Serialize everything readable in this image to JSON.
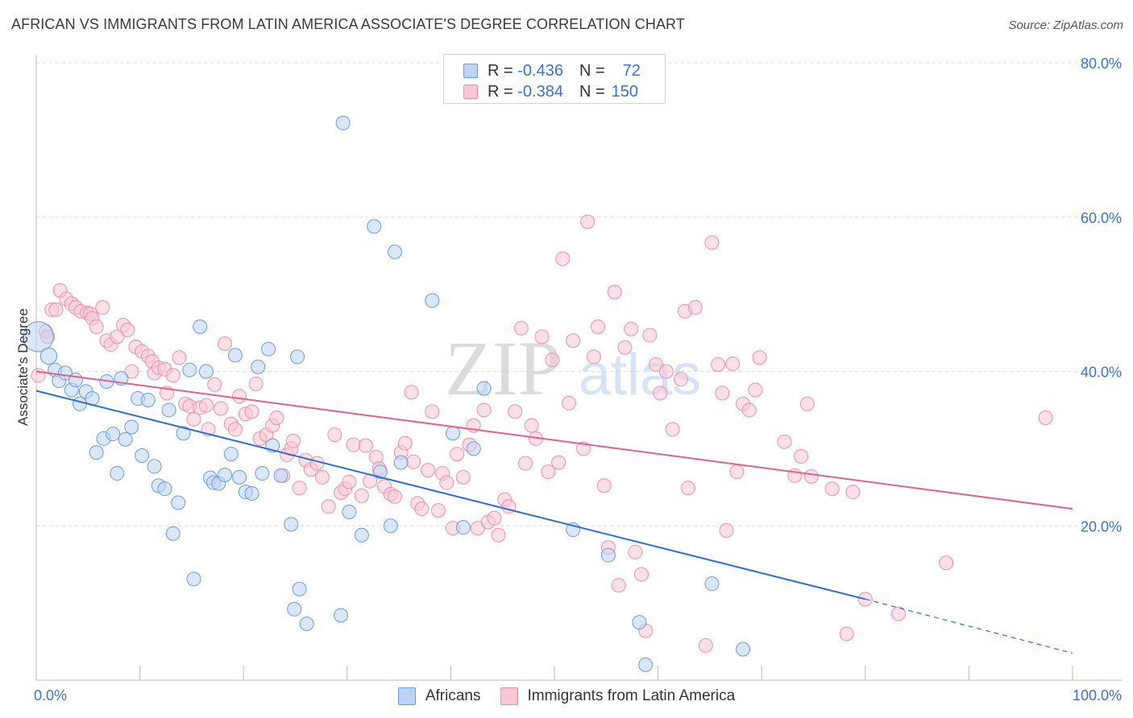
{
  "title": "AFRICAN VS IMMIGRANTS FROM LATIN AMERICA ASSOCIATE'S DEGREE CORRELATION CHART",
  "source": "Source: ZipAtlas.com",
  "watermark": {
    "zip": "ZIP",
    "atlas": "atlas"
  },
  "legend": {
    "r_label": "R =",
    "n_label": "N =",
    "series1": {
      "r": "-0.436",
      "n": "72"
    },
    "series2": {
      "r": "-0.384",
      "n": "150"
    }
  },
  "bottom_legend": {
    "series1": "Africans",
    "series2": "Immigrants from Latin America"
  },
  "colors": {
    "blue_fill": "#bcd3f5",
    "blue_stroke": "#6c9be0",
    "blue_line": "#2f6fd0",
    "pink_fill": "#f9c6d5",
    "pink_stroke": "#eb8faa",
    "pink_line": "#e0628c",
    "axis_text": "#3a74d2",
    "grid": "#dcdcdc"
  },
  "chart_data": {
    "type": "scatter",
    "title": "AFRICAN VS IMMIGRANTS FROM LATIN AMERICA ASSOCIATE'S DEGREE CORRELATION CHART",
    "xlabel": "",
    "ylabel": "Associate's Degree",
    "xlim": [
      0,
      100
    ],
    "ylim": [
      0,
      80
    ],
    "x_tick_labels": {
      "left": "0.0%",
      "right": "100.0%"
    },
    "y_ticks": [
      20,
      40,
      60,
      80
    ],
    "y_tick_labels": [
      "20.0%",
      "40.0%",
      "60.0%",
      "80.0%"
    ],
    "grid": true,
    "series": [
      {
        "name": "Africans",
        "color": "blue",
        "trend": {
          "x0": 0,
          "y0": 37.5,
          "x1": 80,
          "y1": 10.5,
          "dash_to_x": 100,
          "dash_to_y": 3.5
        },
        "points": [
          [
            0.2,
            44.5,
            2.2
          ],
          [
            1.2,
            42,
            1.2
          ],
          [
            1.8,
            40.2,
            1
          ],
          [
            2.2,
            38.8,
            1
          ],
          [
            2.8,
            39.8,
            1
          ],
          [
            3.4,
            37.6,
            1
          ],
          [
            3.8,
            38.9,
            1
          ],
          [
            4.2,
            35.8,
            1
          ],
          [
            4.8,
            37.4,
            1
          ],
          [
            5.4,
            36.5,
            1
          ],
          [
            5.8,
            29.5,
            1
          ],
          [
            6.5,
            31.3,
            1
          ],
          [
            6.8,
            38.7,
            1
          ],
          [
            7.4,
            31.9,
            1
          ],
          [
            7.8,
            26.8,
            1
          ],
          [
            8.2,
            39.1,
            1
          ],
          [
            8.6,
            31.2,
            1
          ],
          [
            9.2,
            32.8,
            1
          ],
          [
            9.8,
            36.5,
            1
          ],
          [
            10.2,
            29.1,
            1
          ],
          [
            10.8,
            36.3,
            1
          ],
          [
            11.4,
            27.7,
            1
          ],
          [
            11.8,
            25.2,
            1
          ],
          [
            12.4,
            24.8,
            1
          ],
          [
            12.8,
            35,
            1
          ],
          [
            13.2,
            19,
            1
          ],
          [
            13.7,
            23,
            1
          ],
          [
            14.2,
            32,
            1
          ],
          [
            14.8,
            40.2,
            1
          ],
          [
            15.2,
            13.1,
            1
          ],
          [
            15.8,
            45.8,
            1
          ],
          [
            16.4,
            40,
            1
          ],
          [
            16.8,
            26.2,
            1
          ],
          [
            17.1,
            25.6,
            1
          ],
          [
            17.6,
            25.5,
            1
          ],
          [
            18.2,
            26.6,
            1
          ],
          [
            18.8,
            29.3,
            1
          ],
          [
            19.2,
            42.1,
            1
          ],
          [
            19.6,
            26.3,
            1
          ],
          [
            20.2,
            24.4,
            1
          ],
          [
            20.8,
            24.2,
            1
          ],
          [
            21.4,
            40.6,
            1
          ],
          [
            21.8,
            26.8,
            1
          ],
          [
            22.4,
            42.9,
            1
          ],
          [
            22.8,
            30.4,
            1
          ],
          [
            23.6,
            26.5,
            1
          ],
          [
            24.6,
            20.2,
            1
          ],
          [
            25.2,
            41.9,
            1
          ],
          [
            25.4,
            11.8,
            1
          ],
          [
            24.9,
            9.2,
            1
          ],
          [
            26.1,
            7.3,
            1
          ],
          [
            29.6,
            72.2,
            1
          ],
          [
            29.4,
            8.4,
            1
          ],
          [
            30.2,
            21.8,
            1
          ],
          [
            31.4,
            18.8,
            1
          ],
          [
            32.6,
            58.8,
            1
          ],
          [
            33.2,
            27,
            1
          ],
          [
            34.2,
            20,
            1
          ],
          [
            34.6,
            55.5,
            1
          ],
          [
            35.2,
            28.2,
            1
          ],
          [
            38.2,
            49.2,
            1
          ],
          [
            40.2,
            32,
            1
          ],
          [
            41.2,
            19.8,
            1
          ],
          [
            42.2,
            30,
            1
          ],
          [
            43.2,
            37.8,
            1
          ],
          [
            51.8,
            19.5,
            1
          ],
          [
            55.2,
            16.2,
            1
          ],
          [
            58.2,
            7.5,
            1
          ],
          [
            58.8,
            2,
            1
          ],
          [
            65.2,
            12.5,
            1
          ],
          [
            68.2,
            4,
            1
          ]
        ]
      },
      {
        "name": "Immigrants from Latin America",
        "color": "pink",
        "trend": {
          "x0": 0,
          "y0": 40,
          "x1": 100,
          "y1": 22.2
        },
        "points": [
          [
            0.2,
            39.5,
            1
          ],
          [
            0.9,
            45.2,
            1
          ],
          [
            1.1,
            44.5,
            1
          ],
          [
            1.5,
            48,
            1
          ],
          [
            1.9,
            48,
            1
          ],
          [
            2.3,
            50.5,
            1
          ],
          [
            2.9,
            49.4,
            1
          ],
          [
            3.4,
            48.8,
            1
          ],
          [
            3.8,
            48.3,
            1
          ],
          [
            4.3,
            47.8,
            1
          ],
          [
            4.9,
            47.6,
            1
          ],
          [
            5.2,
            47.5,
            1
          ],
          [
            5.4,
            46.9,
            1
          ],
          [
            5.8,
            45.8,
            1
          ],
          [
            6.4,
            48.3,
            1
          ],
          [
            6.8,
            44,
            1
          ],
          [
            7.2,
            43.5,
            1
          ],
          [
            7.8,
            44.5,
            1
          ],
          [
            8.4,
            46,
            1
          ],
          [
            8.8,
            45.4,
            1
          ],
          [
            9.2,
            40,
            1
          ],
          [
            9.6,
            43.2,
            1
          ],
          [
            10.2,
            42.6,
            1
          ],
          [
            10.8,
            42,
            1
          ],
          [
            11.2,
            41.3,
            1
          ],
          [
            11.4,
            39.8,
            1
          ],
          [
            11.8,
            40.5,
            1
          ],
          [
            12.4,
            40.3,
            1
          ],
          [
            12.6,
            37.2,
            1
          ],
          [
            13.2,
            39.5,
            1
          ],
          [
            13.8,
            41.8,
            1
          ],
          [
            14.4,
            35.8,
            1
          ],
          [
            14.8,
            35.5,
            1
          ],
          [
            15.2,
            33.8,
            1
          ],
          [
            15.8,
            35.3,
            1
          ],
          [
            16.4,
            35.6,
            1
          ],
          [
            16.6,
            32.5,
            1
          ],
          [
            17.2,
            38.3,
            1
          ],
          [
            17.8,
            35.2,
            1
          ],
          [
            18.2,
            43.6,
            1
          ],
          [
            18.8,
            33.2,
            1
          ],
          [
            19.2,
            32.5,
            1
          ],
          [
            19.6,
            36.8,
            1
          ],
          [
            20.2,
            34.5,
            1
          ],
          [
            20.8,
            34.8,
            1
          ],
          [
            21.2,
            38.4,
            1
          ],
          [
            21.6,
            31.3,
            1
          ],
          [
            22.2,
            31.8,
            1
          ],
          [
            22.8,
            33,
            1
          ],
          [
            23.2,
            34,
            1
          ],
          [
            23.8,
            26.5,
            1
          ],
          [
            24.2,
            29.2,
            1
          ],
          [
            24.6,
            30,
            1
          ],
          [
            24.8,
            31,
            1
          ],
          [
            25.4,
            24.9,
            1
          ],
          [
            26,
            28.5,
            1
          ],
          [
            26.5,
            27.3,
            1
          ],
          [
            27.1,
            28.1,
            1
          ],
          [
            27.6,
            26.3,
            1
          ],
          [
            28.2,
            22.5,
            1
          ],
          [
            28.8,
            31.8,
            1
          ],
          [
            29.4,
            24.3,
            1
          ],
          [
            29.8,
            24.8,
            1
          ],
          [
            30.2,
            25.7,
            1
          ],
          [
            30.6,
            30.5,
            1
          ],
          [
            31.4,
            23.9,
            1
          ],
          [
            31.8,
            30.4,
            1
          ],
          [
            32.2,
            25.8,
            1
          ],
          [
            32.8,
            28.9,
            1
          ],
          [
            33.1,
            27.4,
            1
          ],
          [
            33.6,
            25.1,
            1
          ],
          [
            34.2,
            24.1,
            1
          ],
          [
            34.6,
            23.8,
            1
          ],
          [
            35.2,
            29.5,
            1
          ],
          [
            35.6,
            30.7,
            1
          ],
          [
            36.2,
            37.3,
            1
          ],
          [
            36.4,
            28.3,
            1
          ],
          [
            36.8,
            22.9,
            1
          ],
          [
            37.2,
            22.2,
            1
          ],
          [
            37.8,
            27.2,
            1
          ],
          [
            38.2,
            34.8,
            1
          ],
          [
            38.8,
            22,
            1
          ],
          [
            39.2,
            26.8,
            1
          ],
          [
            39.6,
            25.6,
            1
          ],
          [
            40.2,
            19.7,
            1
          ],
          [
            40.6,
            29.3,
            1
          ],
          [
            41.2,
            26.3,
            1
          ],
          [
            41.8,
            30.5,
            1
          ],
          [
            42.2,
            33,
            1
          ],
          [
            42.6,
            19.7,
            1
          ],
          [
            43.2,
            35,
            1
          ],
          [
            43.6,
            20.5,
            1
          ],
          [
            44.2,
            21,
            1
          ],
          [
            44.6,
            18.8,
            1
          ],
          [
            45.2,
            23.4,
            1
          ],
          [
            45.6,
            22.5,
            1
          ],
          [
            46.2,
            34.8,
            1
          ],
          [
            46.8,
            45.6,
            1
          ],
          [
            47.2,
            28.1,
            1
          ],
          [
            47.8,
            33,
            1
          ],
          [
            48.2,
            31.3,
            1
          ],
          [
            48.8,
            44.5,
            1
          ],
          [
            49.4,
            27,
            1
          ],
          [
            49.8,
            41.5,
            1
          ],
          [
            50.4,
            28.2,
            1
          ],
          [
            50.8,
            54.6,
            1
          ],
          [
            51.4,
            35.9,
            1
          ],
          [
            51.8,
            44,
            1
          ],
          [
            52.8,
            30,
            1
          ],
          [
            53.2,
            59.4,
            1
          ],
          [
            53.8,
            41.9,
            1
          ],
          [
            54.2,
            45.8,
            1
          ],
          [
            54.8,
            25.2,
            1
          ],
          [
            55.2,
            17.2,
            1
          ],
          [
            55.8,
            50.3,
            1
          ],
          [
            56.2,
            12.3,
            1
          ],
          [
            56.8,
            43.1,
            1
          ],
          [
            57.4,
            45.5,
            1
          ],
          [
            57.8,
            16.6,
            1
          ],
          [
            58.4,
            13.7,
            1
          ],
          [
            58.8,
            6.4,
            1
          ],
          [
            59.2,
            44.7,
            1
          ],
          [
            59.8,
            40.9,
            1
          ],
          [
            60.2,
            37.2,
            1
          ],
          [
            60.8,
            40,
            1
          ],
          [
            61.4,
            32.5,
            1
          ],
          [
            62.2,
            39,
            1
          ],
          [
            62.6,
            47.8,
            1
          ],
          [
            62.9,
            24.9,
            1
          ],
          [
            63.6,
            48.3,
            1
          ],
          [
            64.6,
            4.5,
            1
          ],
          [
            65.2,
            56.7,
            1
          ],
          [
            65.8,
            40.9,
            1
          ],
          [
            66.2,
            37.2,
            1
          ],
          [
            66.6,
            19.4,
            1
          ],
          [
            67.2,
            41,
            1
          ],
          [
            67.6,
            27,
            1
          ],
          [
            68.2,
            35.8,
            1
          ],
          [
            68.8,
            35,
            1
          ],
          [
            69.4,
            37.6,
            1
          ],
          [
            69.8,
            41.8,
            1
          ],
          [
            72.2,
            30.9,
            1
          ],
          [
            73.2,
            26.5,
            1
          ],
          [
            73.8,
            29,
            1
          ],
          [
            74.4,
            35.8,
            1
          ],
          [
            74.8,
            26.4,
            1
          ],
          [
            76.8,
            24.8,
            1
          ],
          [
            78.2,
            6,
            1
          ],
          [
            78.8,
            24.4,
            1
          ],
          [
            80,
            10.5,
            1
          ],
          [
            83.2,
            8.6,
            1
          ],
          [
            87.8,
            15.2,
            1
          ],
          [
            97.4,
            34,
            1
          ]
        ]
      }
    ]
  }
}
